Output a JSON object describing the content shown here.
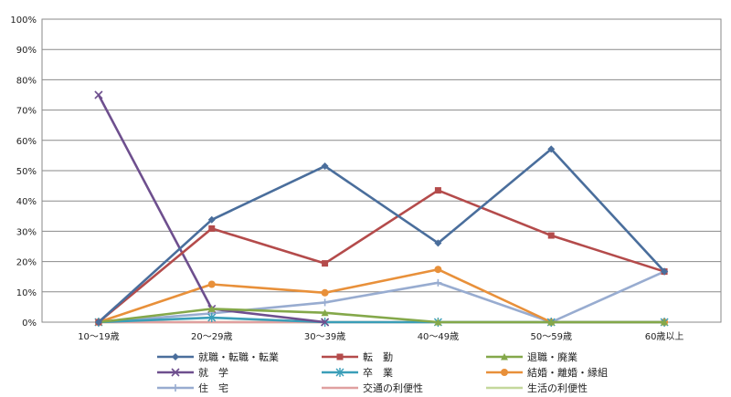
{
  "chart_data": {
    "type": "line",
    "categories": [
      "10～19歳",
      "20～29歳",
      "30～39歳",
      "40～49歳",
      "50～59歳",
      "60歳以上"
    ],
    "ylim": [
      0,
      100
    ],
    "yticks": [
      "0%",
      "10%",
      "20%",
      "30%",
      "40%",
      "50%",
      "60%",
      "70%",
      "80%",
      "90%",
      "100%"
    ],
    "grid": true,
    "legend_position": "bottom",
    "series": [
      {
        "name": "就職・転職・転業",
        "color": "#4a6e9c",
        "marker": "diamond",
        "values": [
          0,
          33.8,
          51.5,
          26.1,
          57.1,
          16.7
        ]
      },
      {
        "name": "転　勤",
        "color": "#b44b4b",
        "marker": "square",
        "values": [
          0,
          30.9,
          19.4,
          43.5,
          28.6,
          16.7
        ]
      },
      {
        "name": "退職・廃業",
        "color": "#84a84a",
        "marker": "triangle",
        "values": [
          0,
          4.4,
          3.1,
          0,
          0,
          0
        ]
      },
      {
        "name": "就　学",
        "color": "#6e4f8e",
        "marker": "x",
        "values": [
          75,
          4.4,
          0,
          null,
          null,
          null
        ]
      },
      {
        "name": "卒　業",
        "color": "#3a9eb8",
        "marker": "star",
        "values": [
          0,
          1.5,
          0,
          0,
          0,
          0
        ]
      },
      {
        "name": "結婚・離婚・縁組",
        "color": "#e8903a",
        "marker": "circle",
        "values": [
          0,
          12.5,
          9.7,
          17.4,
          0,
          0
        ]
      },
      {
        "name": "住　宅",
        "color": "#98acd0",
        "marker": "plus",
        "values": [
          0,
          2.9,
          6.5,
          13.0,
          0,
          16.7
        ]
      },
      {
        "name": "交通の利便性",
        "color": "#e0a0a0",
        "marker": "none",
        "values": [
          0,
          0,
          0,
          0,
          0,
          0
        ]
      },
      {
        "name": "生活の利便性",
        "color": "#c4d89c",
        "marker": "none",
        "values": [
          0,
          0,
          0,
          0,
          0,
          0
        ]
      }
    ]
  }
}
